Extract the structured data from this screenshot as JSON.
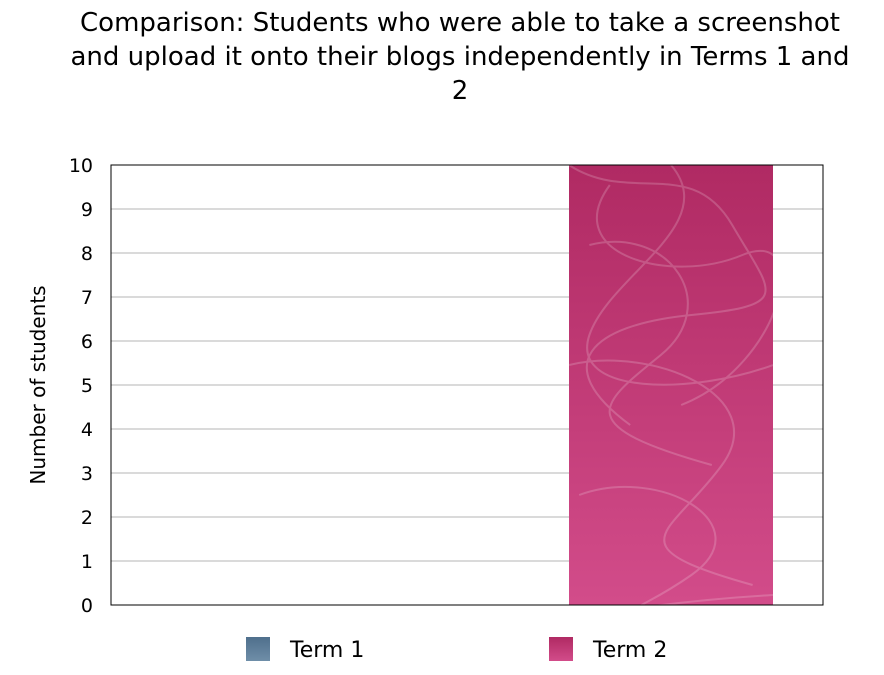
{
  "chart_data": {
    "type": "bar",
    "title": "Comparison: Students who were able to take a screenshot and upload it onto their blogs independently in Terms 1 and 2",
    "ylabel": "Number of students",
    "xlabel": "",
    "ylim": [
      0,
      10
    ],
    "yticks": [
      0,
      1,
      2,
      3,
      4,
      5,
      6,
      7,
      8,
      9,
      10
    ],
    "grid": true,
    "legend": "bottom",
    "series": [
      {
        "name": "Term 1",
        "values": [
          0
        ],
        "color": "#5d7d9a"
      },
      {
        "name": "Term 2",
        "values": [
          10
        ],
        "color": "#c8407f"
      }
    ]
  }
}
